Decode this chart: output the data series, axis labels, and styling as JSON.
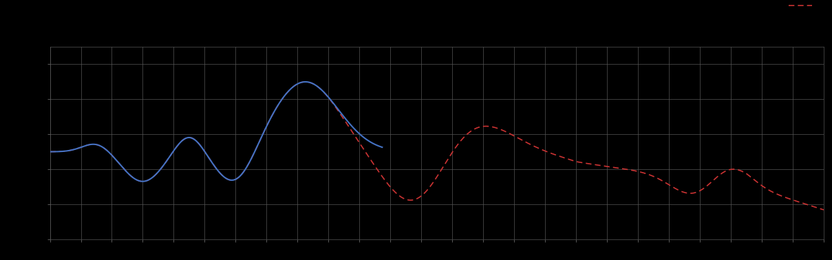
{
  "background_color": "#000000",
  "plot_bg_color": "#000000",
  "grid_color": "#555555",
  "line1_color": "#4472C4",
  "line2_color": "#CC3333",
  "figsize": [
    12.09,
    3.78
  ],
  "dpi": 100,
  "xlim": [
    0,
    100
  ],
  "ylim": [
    -2.0,
    3.5
  ],
  "grid_x_spacing": 4,
  "grid_y_spacing": 1.0,
  "line1_linewidth": 1.5,
  "line2_linewidth": 1.2
}
